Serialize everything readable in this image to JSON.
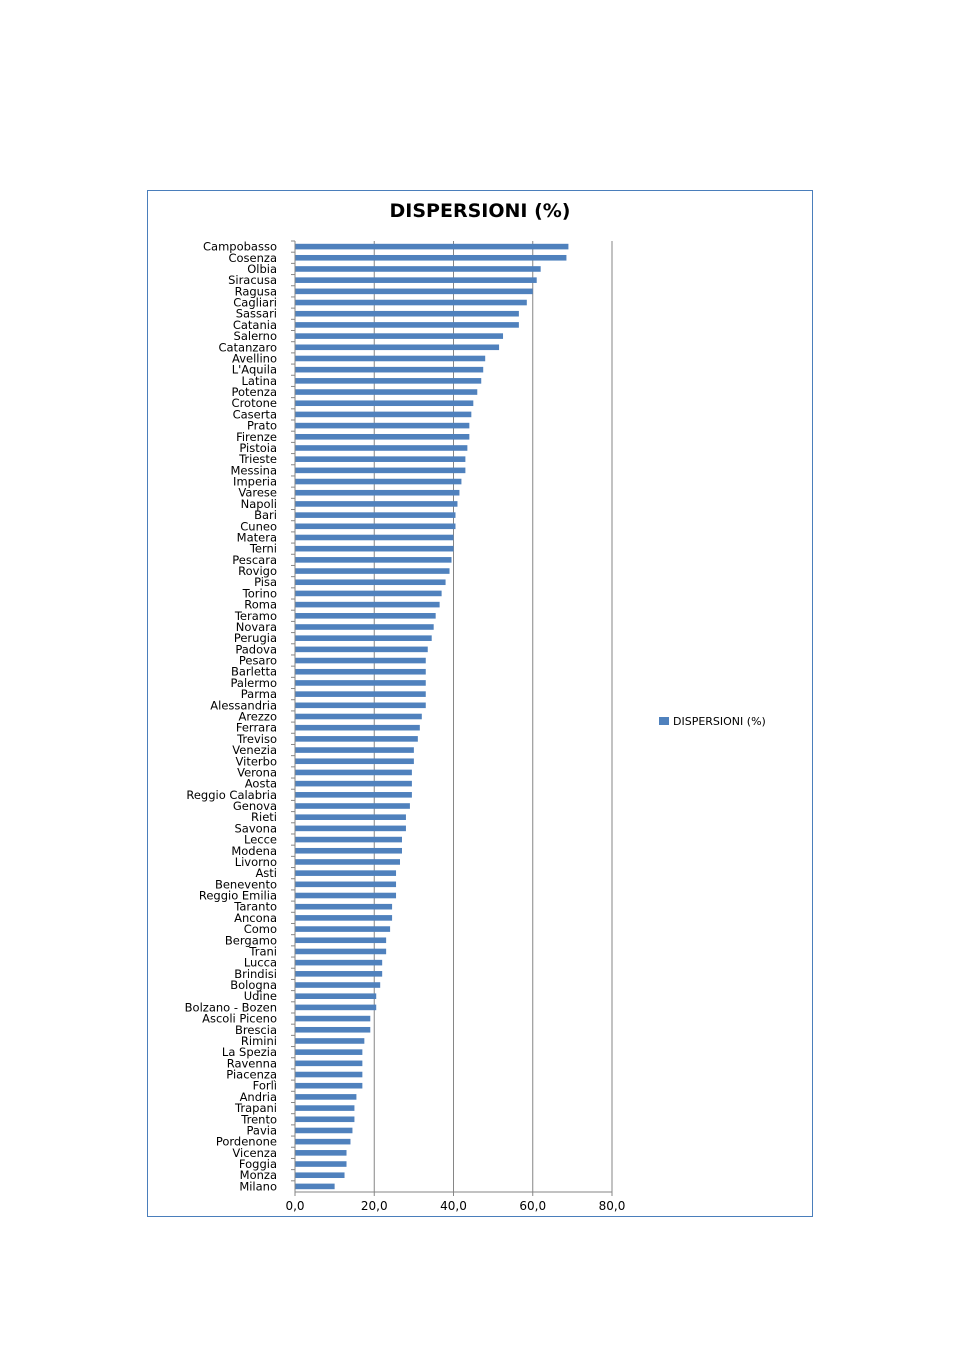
{
  "chart_data": {
    "type": "bar",
    "orientation": "horizontal",
    "title": "DISPERSIONI (%)",
    "xlabel": "",
    "ylabel": "",
    "xlim": [
      0,
      80
    ],
    "x_ticks": [
      "0,0",
      "20,0",
      "40,0",
      "60,0",
      "80,0"
    ],
    "grid": true,
    "legend_position": "right",
    "series": [
      {
        "name": "DISPERSIONI  (%)",
        "color": "#4f81bd",
        "values": [
          69.0,
          68.5,
          62.0,
          61.0,
          60.0,
          58.5,
          56.5,
          56.5,
          52.5,
          51.5,
          48.0,
          47.5,
          47.0,
          46.0,
          45.0,
          44.5,
          44.0,
          44.0,
          43.5,
          43.0,
          43.0,
          42.0,
          41.5,
          41.0,
          40.5,
          40.5,
          40.0,
          40.0,
          39.5,
          39.0,
          38.0,
          37.0,
          36.5,
          35.5,
          35.0,
          34.5,
          33.5,
          33.0,
          33.0,
          33.0,
          33.0,
          33.0,
          32.0,
          31.5,
          31.0,
          30.0,
          30.0,
          29.5,
          29.5,
          29.5,
          29.0,
          28.0,
          28.0,
          27.0,
          27.0,
          26.5,
          25.5,
          25.5,
          25.5,
          24.5,
          24.5,
          24.0,
          23.0,
          23.0,
          22.0,
          22.0,
          21.5,
          20.5,
          20.5,
          19.0,
          19.0,
          17.5,
          17.0,
          17.0,
          17.0,
          17.0,
          15.5,
          15.0,
          15.0,
          14.5,
          14.0,
          13.0,
          13.0,
          12.5,
          10.0
        ]
      }
    ],
    "categories": [
      "Campobasso",
      "Cosenza",
      "Olbia",
      "Siracusa",
      "Ragusa",
      "Cagliari",
      "Sassari",
      "Catania",
      "Salerno",
      "Catanzaro",
      "Avellino",
      "L'Aquila",
      "Latina",
      "Potenza",
      "Crotone",
      "Caserta",
      "Prato",
      "Firenze",
      "Pistoia",
      "Trieste",
      "Messina",
      "Imperia",
      "Varese",
      "Napoli",
      "Bari",
      "Cuneo",
      "Matera",
      "Terni",
      "Pescara",
      "Rovigo",
      "Pisa",
      "Torino",
      "Roma",
      "Teramo",
      "Novara",
      "Perugia",
      "Padova",
      "Pesaro",
      "Barletta",
      "Palermo",
      "Parma",
      "Alessandria",
      "Arezzo",
      "Ferrara",
      "Treviso",
      "Venezia",
      "Viterbo",
      "Verona",
      "Aosta",
      "Reggio Calabria",
      "Genova",
      "Rieti",
      "Savona",
      "Lecce",
      "Modena",
      "Livorno",
      "Asti",
      "Benevento",
      "Reggio Emilia",
      "Taranto",
      "Ancona",
      "Como",
      "Bergamo",
      "Trani",
      "Lucca",
      "Brindisi",
      "Bologna",
      "Udine",
      "Bolzano - Bozen",
      "Ascoli Piceno",
      "Brescia",
      "Rimini",
      "La Spezia",
      "Ravenna",
      "Piacenza",
      "Forlì",
      "Andria",
      "Trapani",
      "Trento",
      "Pavia",
      "Pordenone",
      "Vicenza",
      "Foggia",
      "Monza",
      "Milano"
    ]
  }
}
